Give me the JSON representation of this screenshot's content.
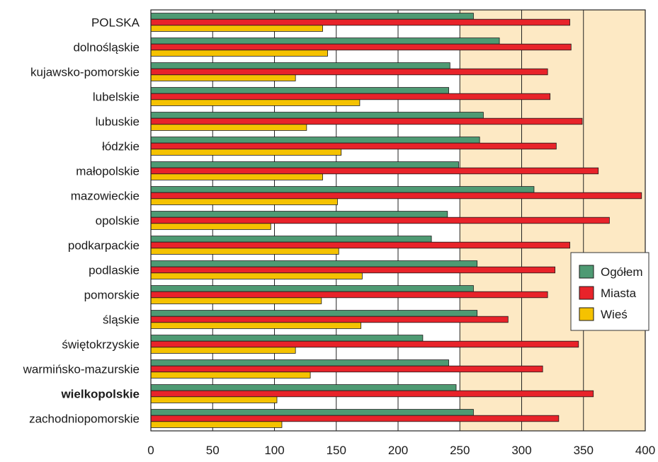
{
  "chart_data": {
    "type": "bar",
    "orientation": "horizontal",
    "categories": [
      "POLSKA",
      "dolnośląskie",
      "kujawsko-pomorskie",
      "lubelskie",
      "lubuskie",
      "łódzkie",
      "małopolskie",
      "mazowieckie",
      "opolskie",
      "podkarpackie",
      "podlaskie",
      "pomorskie",
      "śląskie",
      "świętokrzyskie",
      "warmińsko-mazurskie",
      "wielkopolskie",
      "zachodniopomorskie"
    ],
    "highlight_category": "wielkopolskie",
    "series": [
      {
        "name": "Ogółem",
        "color": "#4e9a73",
        "values": [
          261,
          282,
          242,
          241,
          269,
          266,
          249,
          310,
          240,
          227,
          264,
          261,
          264,
          220,
          241,
          247,
          261
        ]
      },
      {
        "name": "Miasta",
        "color": "#e8232a",
        "values": [
          339,
          340,
          321,
          323,
          349,
          328,
          362,
          397,
          371,
          339,
          327,
          321,
          289,
          346,
          317,
          358,
          330
        ]
      },
      {
        "name": "Wieś",
        "color": "#f5c200",
        "values": [
          139,
          143,
          117,
          169,
          126,
          154,
          139,
          151,
          97,
          152,
          171,
          138,
          170,
          117,
          129,
          102,
          106
        ]
      }
    ],
    "x_ticks": [
      0,
      50,
      100,
      150,
      200,
      250,
      300,
      350,
      400
    ],
    "xlim": [
      0,
      400
    ],
    "grid": true,
    "legend_position": "right",
    "plot_background": "#fde9c4",
    "white_zone_until": 250
  }
}
